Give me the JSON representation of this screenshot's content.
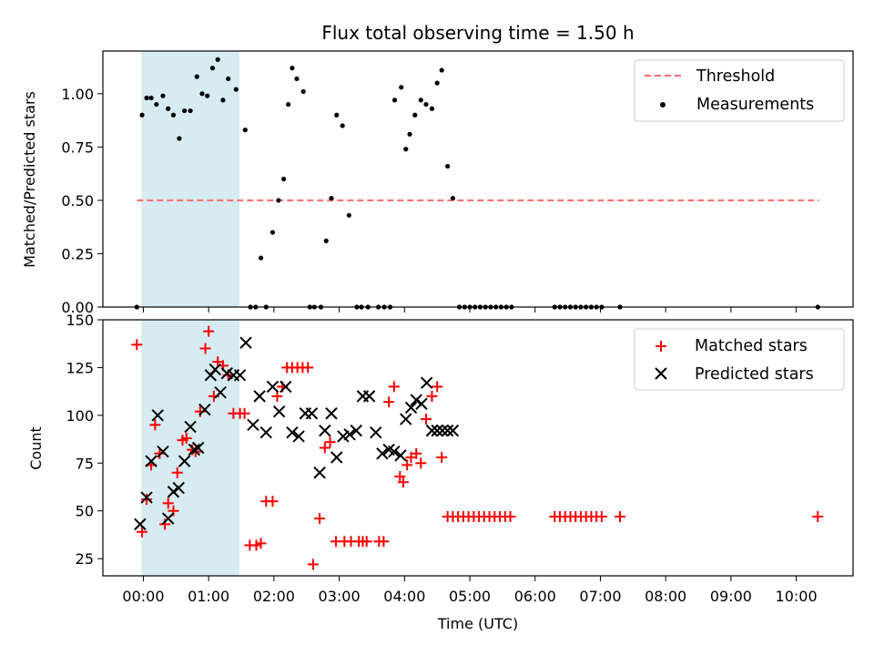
{
  "chart_data": {
    "title": "Flux total observing time = 1.50 h",
    "xlabel": "Time (UTC)",
    "x_unit": "hours since 00:00 UTC",
    "xlim": [
      -0.62,
      10.87
    ],
    "xticks": [
      0,
      1,
      2,
      3,
      4,
      5,
      6,
      7,
      8,
      9,
      10
    ],
    "xtick_labels": [
      "00:00",
      "01:00",
      "02:00",
      "03:00",
      "04:00",
      "05:00",
      "06:00",
      "07:00",
      "08:00",
      "09:00",
      "10:00"
    ],
    "shaded_interval": {
      "start": -0.03,
      "end": 1.47,
      "color": "#add8e6"
    },
    "top": {
      "type": "scatter",
      "ylabel": "Matched/Predicted stars",
      "ylim": [
        0,
        1.2
      ],
      "yticks": [
        0.0,
        0.25,
        0.5,
        0.75,
        1.0
      ],
      "ytick_labels": [
        "0.00",
        "0.25",
        "0.50",
        "0.75",
        "1.00"
      ],
      "legend": [
        "Threshold",
        "Measurements"
      ],
      "legend_position": "upper right",
      "threshold": {
        "value": 0.5,
        "x_start": -0.1,
        "x_end": 10.35,
        "color": "#ff6b6b"
      },
      "measurements": {
        "color": "#000000",
        "x": [
          -0.1,
          -0.02,
          0.05,
          0.12,
          0.2,
          0.3,
          0.38,
          0.46,
          0.55,
          0.63,
          0.72,
          0.82,
          0.9,
          0.98,
          1.06,
          1.14,
          1.22,
          1.3,
          1.42,
          1.56,
          1.64,
          1.72,
          1.8,
          1.88,
          1.98,
          2.07,
          2.15,
          2.22,
          2.28,
          2.35,
          2.45,
          2.55,
          2.62,
          2.72,
          2.8,
          2.88,
          2.96,
          3.05,
          3.15,
          3.27,
          3.34,
          3.44,
          3.6,
          3.69,
          3.78,
          3.85,
          3.95,
          4.02,
          4.08,
          4.16,
          4.25,
          4.33,
          4.42,
          4.5,
          4.57,
          4.66,
          4.74,
          4.84,
          4.92,
          5.0,
          5.08,
          5.16,
          5.24,
          5.32,
          5.4,
          5.48,
          5.56,
          5.64,
          6.3,
          6.38,
          6.46,
          6.54,
          6.62,
          6.7,
          6.78,
          6.86,
          6.94,
          7.02,
          7.3,
          10.33
        ],
        "y": [
          0.0,
          0.9,
          0.98,
          0.98,
          0.95,
          0.99,
          0.93,
          0.9,
          0.79,
          0.92,
          0.92,
          1.08,
          1.0,
          0.99,
          1.12,
          1.16,
          0.97,
          1.07,
          1.02,
          0.83,
          0.0,
          0.0,
          0.23,
          0.0,
          0.35,
          0.5,
          0.6,
          0.95,
          1.12,
          1.07,
          1.01,
          0.0,
          0.0,
          0.0,
          0.31,
          0.51,
          0.9,
          0.85,
          0.43,
          0.0,
          0.0,
          0.0,
          0.0,
          0.0,
          0.0,
          0.97,
          1.03,
          0.74,
          0.81,
          0.9,
          0.97,
          0.95,
          0.93,
          1.05,
          1.11,
          0.66,
          0.51,
          0.0,
          0.0,
          0.0,
          0.0,
          0.0,
          0.0,
          0.0,
          0.0,
          0.0,
          0.0,
          0.0,
          0.0,
          0.0,
          0.0,
          0.0,
          0.0,
          0.0,
          0.0,
          0.0,
          0.0,
          0.0,
          0.0,
          0.0
        ]
      }
    },
    "bottom": {
      "type": "scatter",
      "ylabel": "Count",
      "ylim": [
        16,
        150
      ],
      "yticks": [
        25,
        50,
        75,
        100,
        125,
        150
      ],
      "ytick_labels": [
        "25",
        "50",
        "75",
        "100",
        "125",
        "150"
      ],
      "legend": [
        "Matched stars",
        "Predicted stars"
      ],
      "legend_position": "upper right",
      "matched": {
        "name": "Matched stars",
        "marker": "+",
        "color": "#ff0000",
        "x": [
          -0.1,
          -0.02,
          0.05,
          0.12,
          0.18,
          0.25,
          0.33,
          0.38,
          0.46,
          0.52,
          0.6,
          0.66,
          0.75,
          0.8,
          0.87,
          0.95,
          1.0,
          1.08,
          1.14,
          1.22,
          1.3,
          1.38,
          1.48,
          1.55,
          1.63,
          1.73,
          1.8,
          1.88,
          1.98,
          2.05,
          2.13,
          2.2,
          2.28,
          2.36,
          2.44,
          2.52,
          2.6,
          2.7,
          2.78,
          2.86,
          2.95,
          3.08,
          3.18,
          3.3,
          3.36,
          3.42,
          3.61,
          3.68,
          3.76,
          3.84,
          3.93,
          3.98,
          4.04,
          4.1,
          4.18,
          4.25,
          4.33,
          4.42,
          4.5,
          4.57,
          4.66,
          4.74,
          4.82,
          4.9,
          4.98,
          5.06,
          5.14,
          5.22,
          5.3,
          5.38,
          5.46,
          5.54,
          5.62,
          6.3,
          6.38,
          6.46,
          6.54,
          6.62,
          6.7,
          6.78,
          6.86,
          6.94,
          7.02,
          7.3,
          10.33
        ],
        "y": [
          137,
          39,
          56,
          74,
          95,
          80,
          43,
          54,
          50,
          70,
          87,
          88,
          82,
          81,
          102,
          135,
          144,
          110,
          128,
          126,
          121,
          101,
          101,
          101,
          32,
          32,
          33,
          55,
          55,
          110,
          115,
          125,
          125,
          125,
          125,
          125,
          22,
          46,
          83,
          86,
          34,
          34,
          34,
          34,
          34,
          34,
          34,
          34,
          107,
          115,
          68,
          65,
          74,
          78,
          80,
          75,
          98,
          110,
          115,
          78,
          47,
          47,
          47,
          47,
          47,
          47,
          47,
          47,
          47,
          47,
          47,
          47,
          47,
          47,
          47,
          47,
          47,
          47,
          47,
          47,
          47,
          47,
          47,
          47,
          47
        ]
      },
      "predicted": {
        "name": "Predicted stars",
        "marker": "x",
        "color": "#000000",
        "x": [
          -0.05,
          0.05,
          0.12,
          0.22,
          0.3,
          0.38,
          0.46,
          0.54,
          0.63,
          0.72,
          0.78,
          0.84,
          0.94,
          1.03,
          1.1,
          1.18,
          1.28,
          1.38,
          1.48,
          1.57,
          1.68,
          1.78,
          1.88,
          1.98,
          2.08,
          2.18,
          2.28,
          2.38,
          2.48,
          2.58,
          2.7,
          2.78,
          2.88,
          2.96,
          3.06,
          3.16,
          3.26,
          3.36,
          3.46,
          3.56,
          3.66,
          3.76,
          3.84,
          3.94,
          4.02,
          4.1,
          4.18,
          4.26,
          4.34,
          4.42,
          4.5,
          4.58,
          4.66,
          4.74
        ],
        "y": [
          43,
          57,
          76,
          100,
          81,
          46,
          60,
          62,
          76,
          94,
          82,
          83,
          103,
          121,
          124,
          112,
          122,
          121,
          121,
          138,
          95,
          110,
          91,
          115,
          102,
          115,
          91,
          89,
          101,
          101,
          70,
          92,
          101,
          78,
          89,
          90,
          92,
          110,
          110,
          91,
          80,
          82,
          81,
          79,
          98,
          104,
          108,
          106,
          117,
          92,
          92,
          92,
          92,
          92
        ]
      }
    }
  }
}
